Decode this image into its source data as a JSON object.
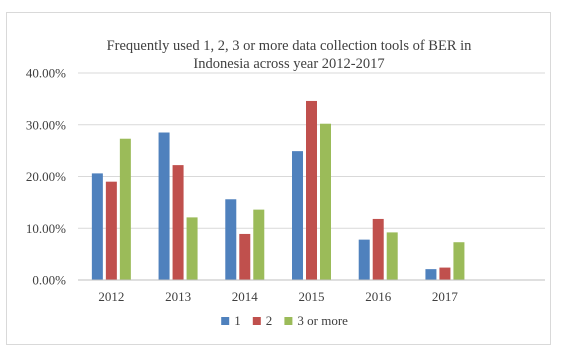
{
  "chart_data": {
    "type": "bar",
    "title_lines": [
      "Frequently used 1, 2, 3 or more data collection tools of BER in",
      "Indonesia across year 2012-2017"
    ],
    "categories": [
      "2012",
      "2013",
      "2014",
      "2015",
      "2016",
      "2017"
    ],
    "series": [
      {
        "name": "1",
        "values": [
          20.6,
          28.5,
          15.6,
          24.9,
          7.8,
          2.1
        ],
        "color": "#4f81bd"
      },
      {
        "name": "2",
        "values": [
          19.0,
          22.2,
          8.9,
          34.6,
          11.8,
          2.4
        ],
        "color": "#c0504d"
      },
      {
        "name": "3 or more",
        "values": [
          27.3,
          12.1,
          13.6,
          30.2,
          9.2,
          7.3
        ],
        "color": "#9bbb59"
      }
    ],
    "ylim": [
      0,
      40
    ],
    "yticks": [
      "0.00%",
      "10.00%",
      "20.00%",
      "30.00%",
      "40.00%"
    ],
    "grid": true,
    "legend_position": "bottom",
    "gridline_color": "#d9d9d9",
    "axis_color": "#bfbfbf"
  }
}
